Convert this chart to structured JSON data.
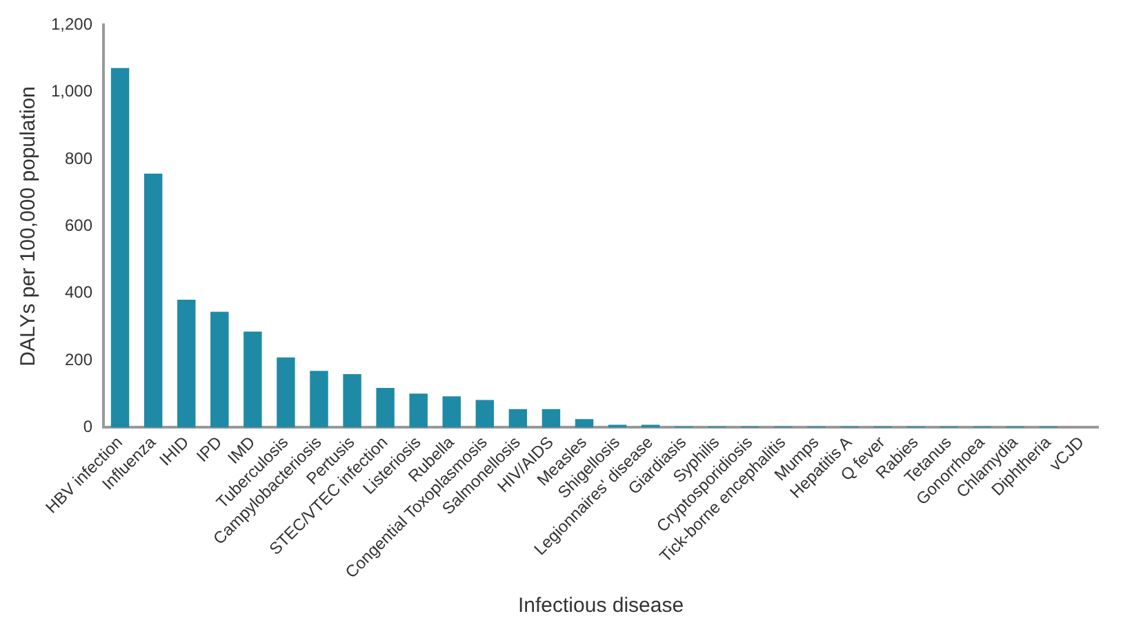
{
  "chart_data": {
    "type": "bar",
    "xlabel": "Infectious disease",
    "ylabel": "DALYs per 100,000 population",
    "categories": [
      "HBV infection",
      "Influenza",
      "IHID",
      "IPD",
      "IMD",
      "Tuberculosis",
      "Campylobacteriosis",
      "Pertusis",
      "STEC/VTEC infection",
      "Listeriosis",
      "Rubella",
      "Congential Toxoplasmosis",
      "Salmonellosis",
      "HIV/AIDS",
      "Measles",
      "Shigellosis",
      "Legionnaires' disease",
      "Giardiasis",
      "Syphilis",
      "Cryptosporidiosis",
      "Tick-borne encephalitis",
      "Mumps",
      "Hepatitis A",
      "Q fever",
      "Rabies",
      "Tetanus",
      "Gonorrhoea",
      "Chlamydia",
      "Diphtheria",
      "vCJD"
    ],
    "values": [
      1072,
      757,
      381,
      345,
      286,
      209,
      169,
      159,
      118,
      101,
      93,
      82,
      55,
      55,
      25,
      8,
      8,
      3,
      3,
      3,
      3,
      3,
      3,
      3,
      3,
      3,
      3,
      3,
      3,
      null
    ],
    "color": "#1f8aa6",
    "ylim": [
      0,
      1200
    ],
    "yticks": [
      0,
      {
        "value": 200,
        "label": "200"
      },
      {
        "value": 400,
        "label": "400"
      },
      {
        "value": 600,
        "label": "600"
      },
      {
        "value": 800,
        "label": "800"
      },
      {
        "value": 1000,
        "label": "1,000"
      },
      {
        "value": 1200,
        "label": "1,200"
      }
    ],
    "grid": false,
    "legend": false
  }
}
